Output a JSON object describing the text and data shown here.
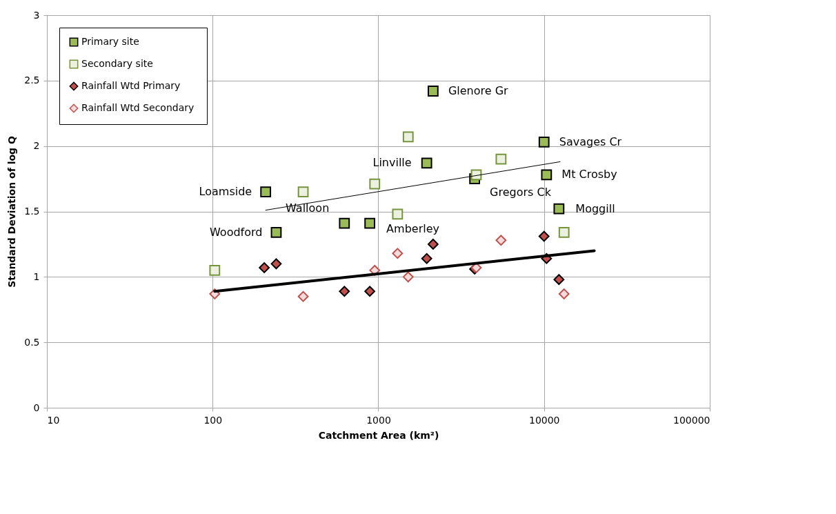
{
  "chart_data": {
    "type": "scatter",
    "xlabel": "Catchment Area (km²)",
    "ylabel": "Standard Deviation of log Q",
    "log": "x",
    "xlim": [
      10,
      100000
    ],
    "xticks": [
      10,
      100,
      1000,
      10000,
      100000
    ],
    "ylim": [
      0,
      3
    ],
    "yticks": [
      0,
      0.5,
      1,
      1.5,
      2,
      2.5,
      3
    ],
    "grid": true,
    "legend": "top left",
    "series": [
      {
        "name": "Primary site",
        "color": "#9bbb59",
        "marker": "square",
        "x": [
          209,
          242,
          624,
          888,
          1959,
          2140,
          3812,
          10000,
          10350,
          12300
        ],
        "values": [
          1.65,
          1.34,
          1.41,
          1.41,
          1.87,
          2.42,
          1.75,
          2.03,
          1.78,
          1.52
        ]
      },
      {
        "name": "Secondary site",
        "color": "#ebf1de",
        "marker": "square",
        "x": [
          103,
          352,
          951,
          1306,
          1514,
          3900,
          5500,
          13200
        ],
        "values": [
          1.05,
          1.65,
          1.71,
          1.48,
          2.07,
          1.78,
          1.9,
          1.34
        ]
      },
      {
        "name": "Rainfall Wtd Primary",
        "color": "#c0504d",
        "marker": "diamond",
        "x": [
          205,
          242,
          624,
          888,
          1959,
          2140,
          3812,
          10000,
          10350,
          12300
        ],
        "values": [
          1.07,
          1.1,
          0.89,
          0.89,
          1.14,
          1.25,
          1.06,
          1.31,
          1.14,
          0.98
        ]
      },
      {
        "name": "Rainfall Wtd  Secondary",
        "color": "#f2dcdb",
        "marker": "diamond",
        "x": [
          103,
          352,
          951,
          1306,
          1514,
          3900,
          5500,
          13200
        ],
        "values": [
          0.87,
          0.85,
          1.05,
          1.18,
          1.0,
          1.07,
          1.28,
          0.87
        ]
      },
      {
        "type": "line",
        "color": "#000000",
        "x": [
          209,
          12500
        ],
        "values": [
          1.51,
          1.88
        ]
      },
      {
        "type": "line",
        "color": "#000000",
        "x": [
          103,
          20100
        ],
        "values": [
          0.89,
          1.2
        ]
      }
    ],
    "annotations": [
      {
        "text": "Loamside",
        "x": 209,
        "y": 1.65
      },
      {
        "text": "Woodford",
        "x": 242,
        "y": 1.34
      },
      {
        "text": "Walloon",
        "x": 624,
        "y": 1.41
      },
      {
        "text": "Amberley",
        "x": 888,
        "y": 1.41
      },
      {
        "text": "Linville",
        "x": 1959,
        "y": 1.87
      },
      {
        "text": "Glenore Gr",
        "x": 2140,
        "y": 2.42
      },
      {
        "text": "Gregors Ck",
        "x": 3812,
        "y": 1.75
      },
      {
        "text": "Savages Cr",
        "x": 10000,
        "y": 2.03
      },
      {
        "text": "Mt Crosby",
        "x": 10350,
        "y": 1.78
      },
      {
        "text": "Moggill",
        "x": 12300,
        "y": 1.52
      }
    ]
  }
}
